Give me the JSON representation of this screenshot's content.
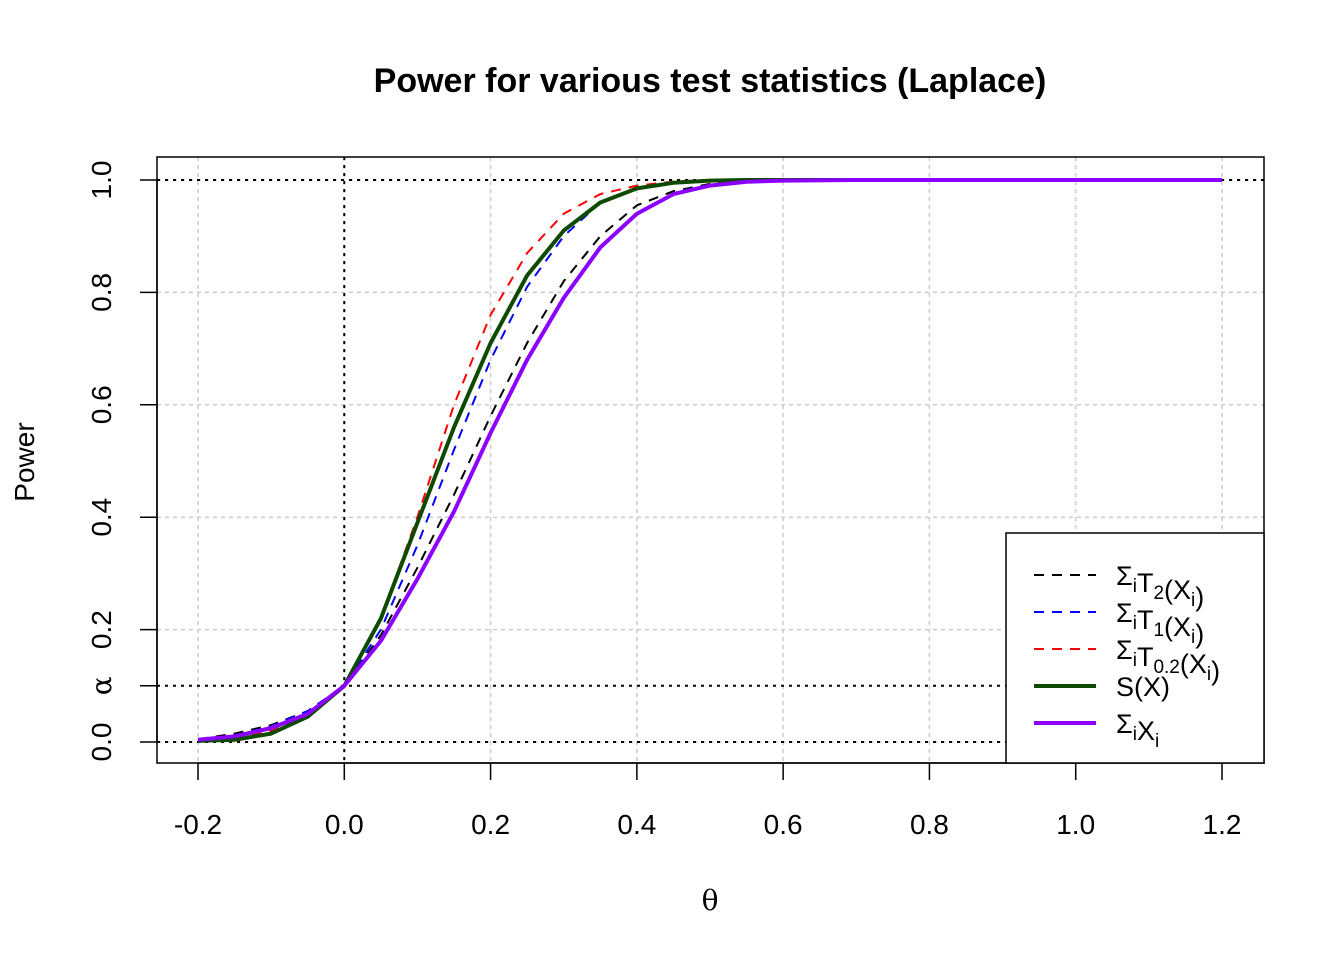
{
  "chart_data": {
    "type": "line",
    "title": "Power for various test statistics (Laplace)",
    "xlabel": "θ",
    "ylabel": "Power",
    "xlim": [
      -0.2,
      1.2
    ],
    "ylim": [
      0.0,
      1.0
    ],
    "x_ticks": [
      "-0.2",
      "0.0",
      "0.2",
      "0.4",
      "0.6",
      "0.8",
      "1.0",
      "1.2"
    ],
    "y_ticks": [
      "0.0",
      "α",
      "0.2",
      "0.4",
      "0.6",
      "0.8",
      "1.0"
    ],
    "alpha": 0.1,
    "grid": true,
    "legend_position": "bottom-right",
    "reference_lines": {
      "horizontal": [
        0.0,
        0.1,
        1.0
      ],
      "vertical": [
        0.0
      ]
    },
    "x": [
      -0.2,
      -0.15,
      -0.1,
      -0.05,
      0.0,
      0.05,
      0.1,
      0.15,
      0.2,
      0.25,
      0.3,
      0.35,
      0.4,
      0.45,
      0.5,
      0.55,
      0.6,
      0.7,
      0.8,
      0.9,
      1.0,
      1.1,
      1.2
    ],
    "series": [
      {
        "name": "ΣiT2(Xi)",
        "color": "#000000",
        "dash": true,
        "values": [
          0.005,
          0.015,
          0.03,
          0.055,
          0.1,
          0.19,
          0.31,
          0.44,
          0.58,
          0.71,
          0.82,
          0.9,
          0.955,
          0.98,
          0.993,
          0.998,
          1.0,
          1.0,
          1.0,
          1.0,
          1.0,
          1.0,
          1.0
        ]
      },
      {
        "name": "ΣiT1(Xi)",
        "color": "#0000ff",
        "dash": true,
        "values": [
          0.004,
          0.012,
          0.028,
          0.055,
          0.1,
          0.2,
          0.35,
          0.52,
          0.68,
          0.81,
          0.9,
          0.96,
          0.985,
          0.995,
          0.999,
          1.0,
          1.0,
          1.0,
          1.0,
          1.0,
          1.0,
          1.0,
          1.0
        ]
      },
      {
        "name": "ΣiT0.2(Xi)",
        "color": "#ff0000",
        "dash": true,
        "values": [
          0.003,
          0.008,
          0.02,
          0.05,
          0.1,
          0.22,
          0.4,
          0.6,
          0.76,
          0.87,
          0.94,
          0.975,
          0.99,
          0.997,
          1.0,
          1.0,
          1.0,
          1.0,
          1.0,
          1.0,
          1.0,
          1.0,
          1.0
        ]
      },
      {
        "name": "S(X)",
        "color": "#0d4a00",
        "dash": false,
        "values": [
          0.002,
          0.004,
          0.015,
          0.045,
          0.1,
          0.22,
          0.39,
          0.56,
          0.71,
          0.83,
          0.91,
          0.96,
          0.985,
          0.995,
          0.999,
          1.0,
          1.0,
          1.0,
          1.0,
          1.0,
          1.0,
          1.0,
          1.0
        ]
      },
      {
        "name": "ΣiXi",
        "color": "#8b00ff",
        "dash": false,
        "values": [
          0.004,
          0.01,
          0.025,
          0.05,
          0.1,
          0.18,
          0.29,
          0.41,
          0.55,
          0.68,
          0.79,
          0.88,
          0.94,
          0.975,
          0.99,
          0.997,
          0.999,
          1.0,
          1.0,
          1.0,
          1.0,
          1.0,
          1.0
        ]
      }
    ],
    "legend_labels": [
      {
        "pre": "Σ",
        "sub1": "i",
        "mid": "T",
        "sub2": "2",
        "post": "(X",
        "sub3": "i",
        "end": ")"
      },
      {
        "pre": "Σ",
        "sub1": "i",
        "mid": "T",
        "sub2": "1",
        "post": "(X",
        "sub3": "i",
        "end": ")"
      },
      {
        "pre": "Σ",
        "sub1": "i",
        "mid": "T",
        "sub2": "0.2",
        "post": "(X",
        "sub3": "i",
        "end": ")"
      },
      {
        "pre": "S(X)",
        "sub1": "",
        "mid": "",
        "sub2": "",
        "post": "",
        "sub3": "",
        "end": ""
      },
      {
        "pre": "Σ",
        "sub1": "i",
        "mid": "X",
        "sub2": "i",
        "post": "",
        "sub3": "",
        "end": ""
      }
    ]
  }
}
